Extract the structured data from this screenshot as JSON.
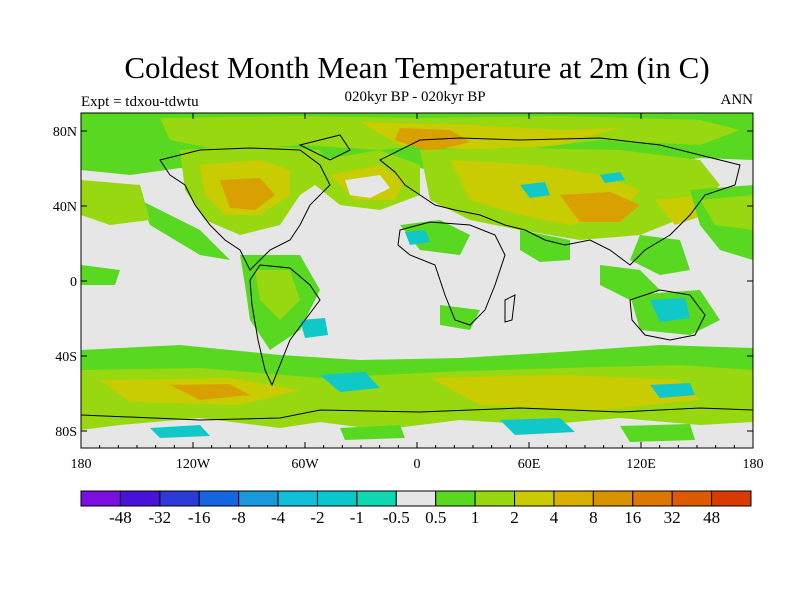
{
  "title": "Coldest Month Mean Temperature at 2m (in C)",
  "subtitle": "020kyr BP - 020kyr BP",
  "left_label": "Expt = tdxou-tdwtu",
  "right_label": "ANN",
  "lat_ticks": [
    "80N",
    "40N",
    "0",
    "40S",
    "80S"
  ],
  "lon_ticks": [
    "180",
    "120W",
    "60W",
    "0",
    "60E",
    "120E",
    "180"
  ],
  "colorbar": {
    "colors": [
      "#7a0fe0",
      "#4a12d8",
      "#2c3ad6",
      "#1565e0",
      "#1a98dc",
      "#10c0d8",
      "#08c8cc",
      "#10d8b0",
      "#e6e6e6",
      "#58d820",
      "#98d810",
      "#c8cc00",
      "#d8b000",
      "#d89400",
      "#dc7800",
      "#dc5a00",
      "#d83a00"
    ],
    "labels": [
      "-48",
      "-32",
      "-16",
      "-8",
      "-4",
      "-2",
      "-1",
      "-0.5",
      "0.5",
      "1",
      "2",
      "4",
      "8",
      "16",
      "32",
      "48"
    ]
  },
  "palette": {
    "ocean_neutral": "#e6e6e6",
    "green": "#58d820",
    "yellow_green": "#98d810",
    "olive": "#c8cc00",
    "orange": "#d8a000",
    "cyan": "#10c8c8",
    "coast": "#000000"
  }
}
